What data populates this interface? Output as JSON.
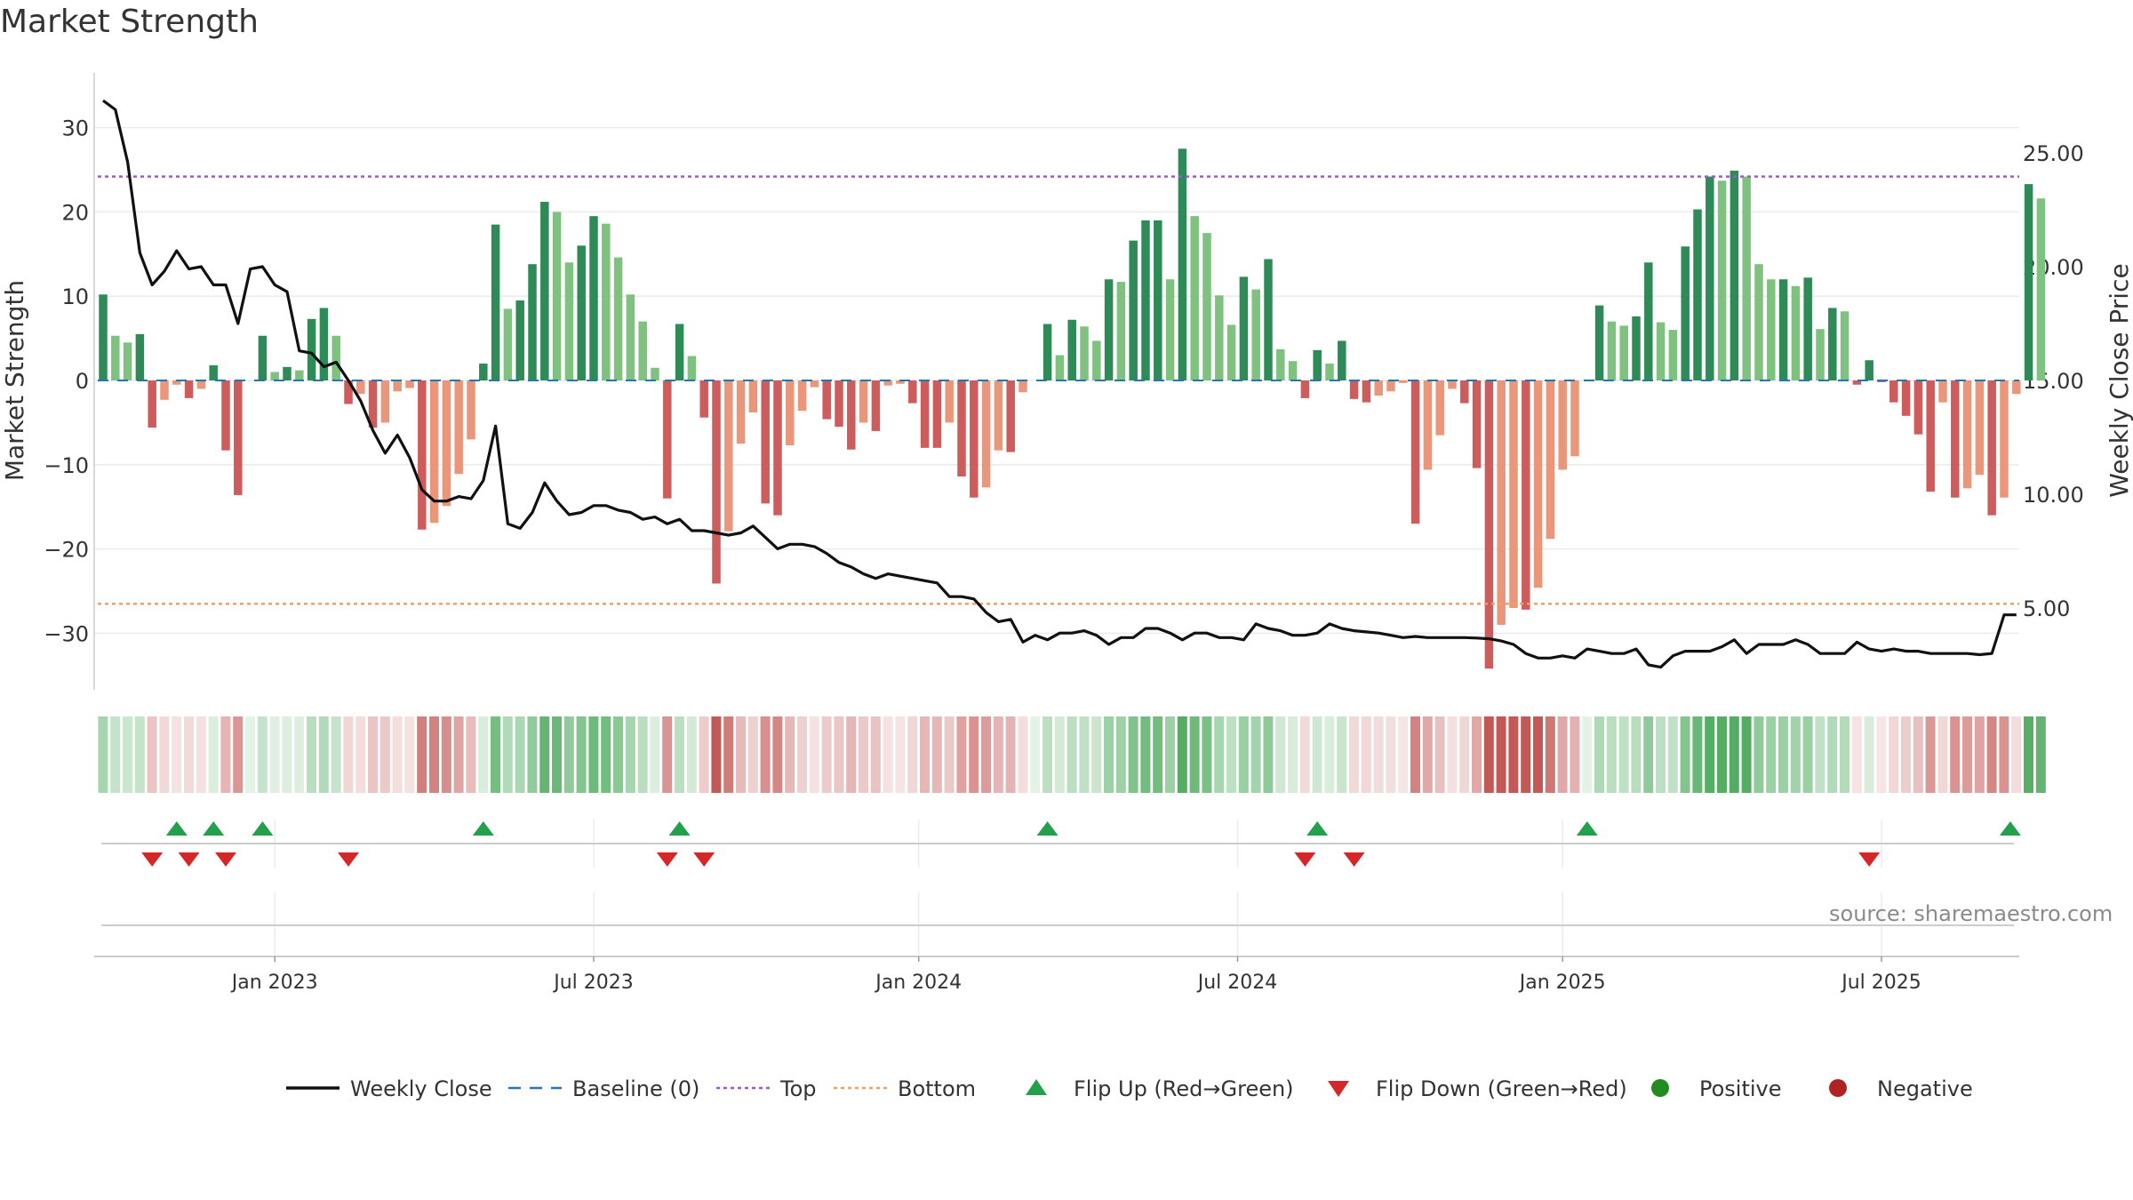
{
  "title": "Market Strength",
  "source": "source: sharemaestro.com",
  "chart_data": {
    "type": "bar",
    "y_left_label": "Market Strength",
    "y_right_label": "Weekly Close Price",
    "y_left_ticks": [
      "30",
      "20",
      "10",
      "0",
      "−10",
      "−20",
      "−30"
    ],
    "y_left_tick_values": [
      30,
      20,
      10,
      0,
      -10,
      -20,
      -30
    ],
    "y_right_ticks": [
      "25.00",
      "20.00",
      "15.00",
      "10.00",
      "5.00"
    ],
    "y_right_tick_values": [
      25,
      20,
      15,
      10,
      5
    ],
    "ylim_left": [
      -36.5,
      36.5
    ],
    "ylim_right": [
      1.0,
      27.9
    ],
    "x_tick_labels": [
      "Jan 2023",
      "Jul 2023",
      "Jan 2024",
      "Jul 2024",
      "Jan 2025",
      "Jul 2025"
    ],
    "x_tick_weeks": [
      14,
      40,
      66.5,
      92.5,
      119,
      145
    ],
    "first_week": "2022-10-03",
    "weeks": 157,
    "strength": [
      10.2,
      5.3,
      4.5,
      5.5,
      -5.6,
      -2.3,
      -0.5,
      -2.1,
      -1.0,
      1.8,
      -8.3,
      -13.6,
      0,
      5.3,
      1.0,
      1.6,
      1.2,
      7.3,
      8.6,
      5.3,
      -2.8,
      -1.6,
      -5.6,
      -5.0,
      -1.3,
      -0.9,
      -17.7,
      -16.9,
      -14.9,
      -11.1,
      -7.0,
      2.0,
      18.5,
      8.5,
      9.5,
      13.8,
      21.2,
      20.0,
      14.0,
      16.0,
      19.5,
      18.6,
      14.6,
      10.2,
      7.0,
      1.5,
      -14.0,
      6.7,
      2.9,
      -4.4,
      -24.1,
      -17.9,
      -7.5,
      -3.8,
      -14.6,
      -16.0,
      -7.7,
      -3.6,
      -0.8,
      -4.6,
      -5.5,
      -8.2,
      -5.0,
      -6.0,
      -0.6,
      -0.4,
      -2.7,
      -8.0,
      -8.0,
      -5.0,
      -11.4,
      -13.9,
      -12.7,
      -8.3,
      -8.5,
      -1.4,
      0,
      6.7,
      3.0,
      7.2,
      6.4,
      4.7,
      12.0,
      11.7,
      16.6,
      19.0,
      19.0,
      12.0,
      27.5,
      19.5,
      17.5,
      10.1,
      6.6,
      12.3,
      10.8,
      14.4,
      3.7,
      2.3,
      -2.1,
      3.6,
      2.0,
      4.7,
      -2.2,
      -2.6,
      -1.8,
      -1.3,
      -0.3,
      -17.0,
      -10.6,
      -6.5,
      -1.0,
      -2.7,
      -10.4,
      -34.2,
      -29.0,
      -27.0,
      -27.2,
      -24.6,
      -18.8,
      -10.6,
      -9.0,
      0,
      8.9,
      7.0,
      6.5,
      7.6,
      14.0,
      6.9,
      6.0,
      15.9,
      20.3,
      24.2,
      23.7,
      24.9,
      24.2,
      13.8,
      12.0,
      12.0,
      11.2,
      12.2,
      6.1,
      8.6,
      8.2,
      -0.5,
      2.4,
      -0.2,
      -2.6,
      -4.2,
      -6.4,
      -13.2,
      -2.6,
      -13.9,
      -12.8,
      -11.2,
      -16.0,
      -13.9,
      -1.6,
      23.3,
      21.6
    ],
    "close": [
      27.3,
      26.9,
      24.6,
      20.6,
      19.2,
      19.8,
      20.7,
      19.9,
      20.0,
      19.2,
      19.2,
      17.5,
      19.9,
      20.0,
      19.2,
      18.9,
      16.3,
      16.2,
      15.6,
      15.8,
      15.0,
      14.1,
      12.8,
      11.8,
      12.6,
      11.6,
      10.2,
      9.7,
      9.7,
      9.9,
      9.8,
      10.6,
      13.0,
      8.7,
      8.5,
      9.2,
      10.5,
      9.7,
      9.1,
      9.2,
      9.5,
      9.5,
      9.3,
      9.2,
      8.9,
      9.0,
      8.7,
      8.9,
      8.4,
      8.4,
      8.3,
      8.2,
      8.3,
      8.6,
      8.1,
      7.6,
      7.8,
      7.8,
      7.7,
      7.4,
      7.0,
      6.8,
      6.5,
      6.3,
      6.5,
      6.4,
      6.3,
      6.2,
      6.1,
      5.5,
      5.5,
      5.4,
      4.8,
      4.4,
      4.5,
      3.5,
      3.8,
      3.6,
      3.9,
      3.9,
      4.0,
      3.8,
      3.4,
      3.7,
      3.7,
      4.1,
      4.1,
      3.9,
      3.6,
      3.9,
      3.9,
      3.7,
      3.7,
      3.6,
      4.3,
      4.1,
      4.0,
      3.8,
      3.8,
      3.9,
      4.3,
      4.1,
      4.0,
      3.95,
      3.9,
      3.8,
      3.7,
      3.75,
      3.7,
      3.7,
      3.7,
      3.7,
      3.68,
      3.65,
      3.55,
      3.4,
      3.0,
      2.8,
      2.8,
      2.9,
      2.8,
      3.2,
      3.1,
      3.0,
      3.0,
      3.2,
      2.5,
      2.4,
      2.9,
      3.1,
      3.1,
      3.1,
      3.3,
      3.6,
      3.0,
      3.4,
      3.4,
      3.4,
      3.6,
      3.4,
      3.0,
      3.0,
      3.0,
      3.5,
      3.2,
      3.1,
      3.2,
      3.1,
      3.1,
      3.0,
      3.0,
      3.0,
      3.0,
      2.95,
      3.0,
      4.7,
      4.7
    ],
    "top_line": 24.2,
    "bottom_line": -26.5,
    "flip_up_weeks": [
      6,
      9,
      13,
      31,
      47,
      77,
      99,
      121,
      155.5
    ],
    "flip_down_weeks": [
      4,
      7,
      10,
      20,
      46,
      49,
      98,
      102,
      144
    ],
    "legend": [
      {
        "label": "Weekly Close",
        "key": "close-line",
        "color": "#111111"
      },
      {
        "label": "Baseline (0)",
        "key": "baseline",
        "color": "#1f77b4"
      },
      {
        "label": "Top",
        "key": "top",
        "color": "#9b59d0"
      },
      {
        "label": "Bottom",
        "key": "bottom",
        "color": "#f0a060"
      },
      {
        "label": "Flip Up (Red→Green)",
        "key": "flip-up",
        "color": "#22a04b"
      },
      {
        "label": "Flip Down (Green→Red)",
        "key": "flip-down",
        "color": "#d62728"
      },
      {
        "label": "Positive",
        "key": "positive",
        "color": "#228b22"
      },
      {
        "label": "Negative",
        "key": "negative",
        "color": "#b22222"
      }
    ],
    "colors": {
      "pos_strong": "#2e8b57",
      "pos_light": "#7fc27f",
      "neg_strong": "#cd5c5c",
      "neg_light": "#e9967a",
      "grid": "#ebebeb"
    }
  }
}
